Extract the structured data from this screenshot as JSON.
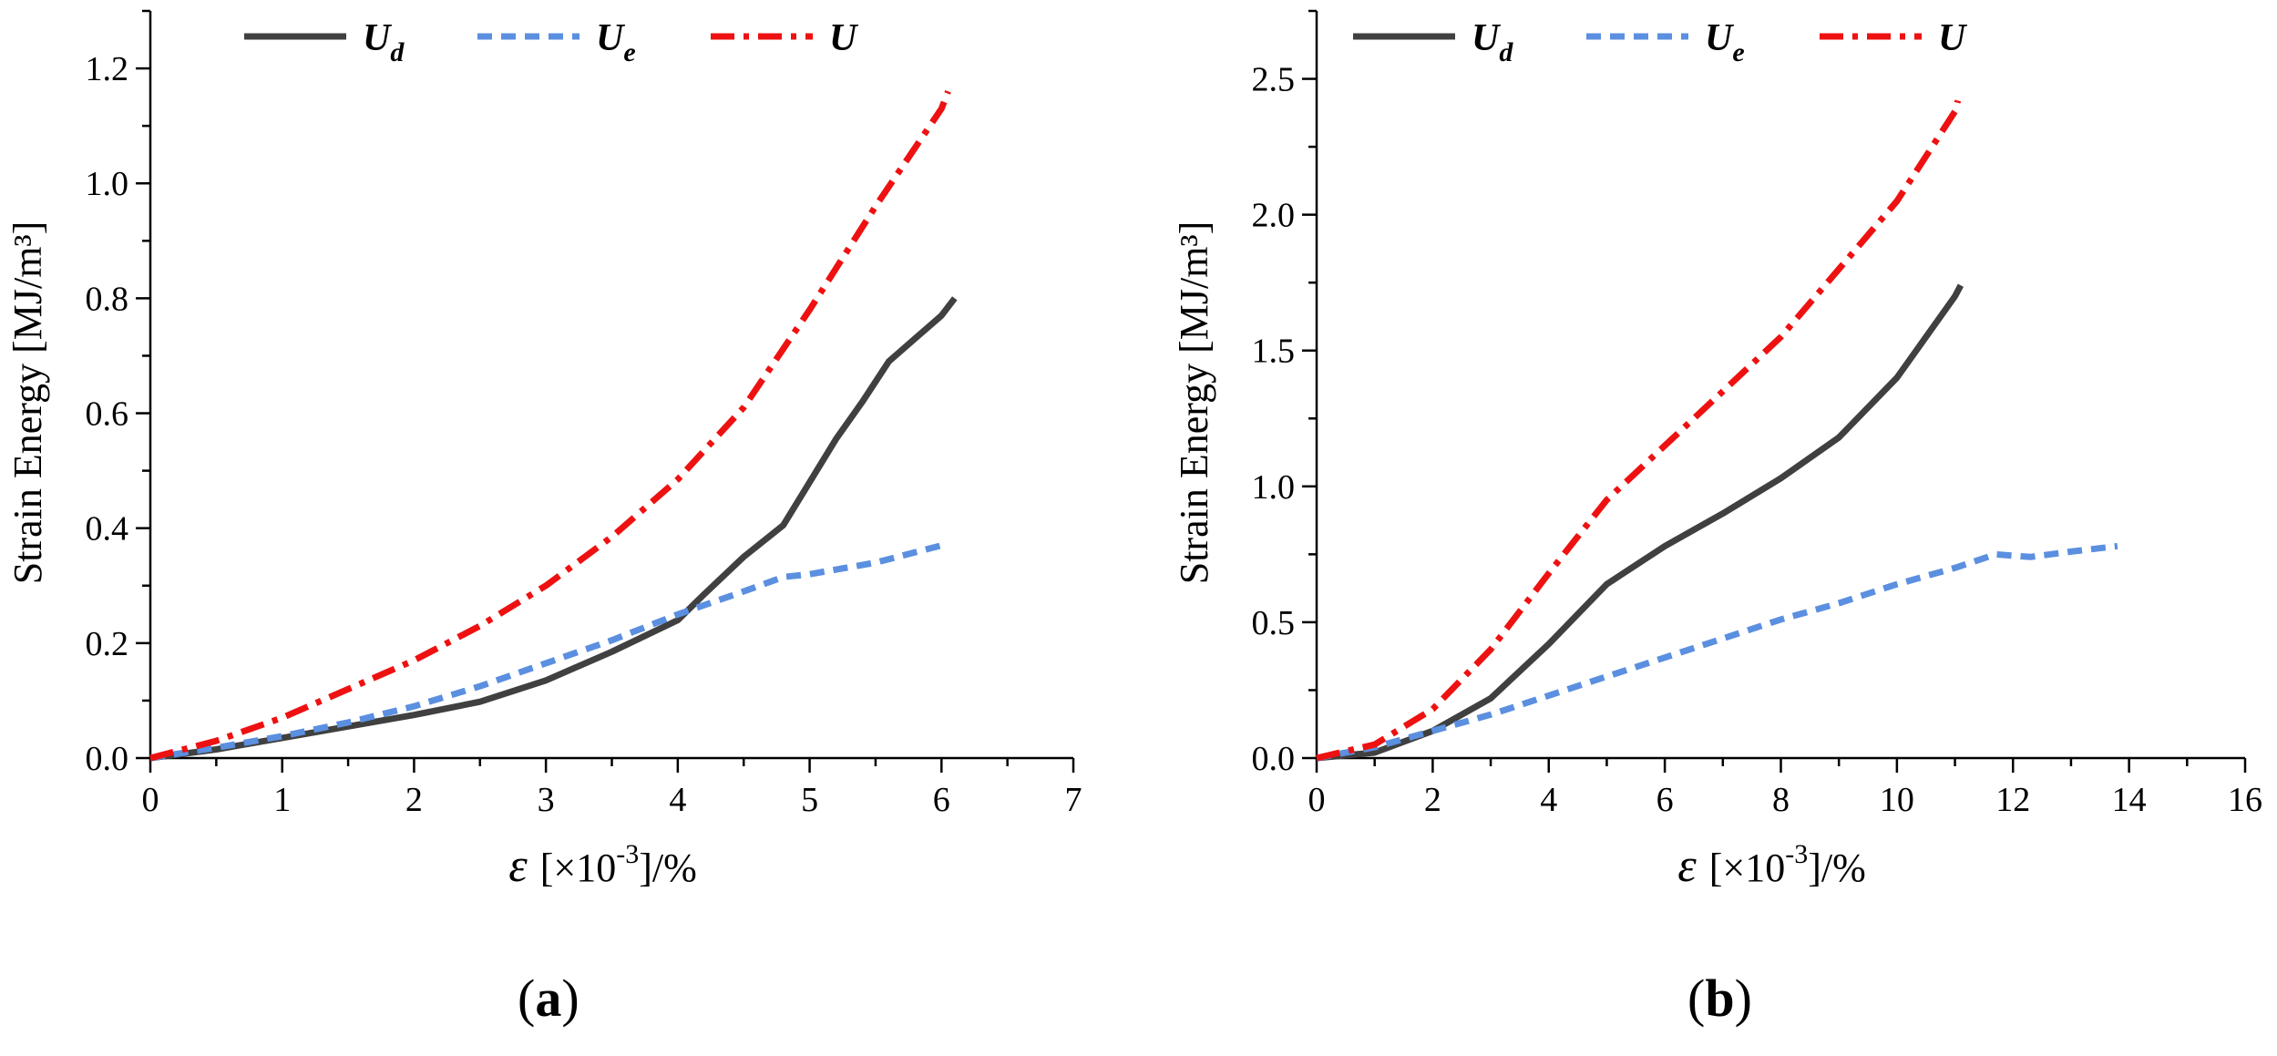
{
  "figure": {
    "panel_labels": [
      "a",
      "b"
    ]
  },
  "chart_data": [
    {
      "type": "line",
      "panel": "(a)",
      "title": "",
      "xlabel_symbol": "ε",
      "xlabel_unit": "[×10",
      "xlabel_exp": "-3",
      "xlabel_tail": "]/%",
      "ylabel": "Strain Energy [MJ/m³]",
      "xlim": [
        0,
        7
      ],
      "ylim": [
        0,
        1.3
      ],
      "xticks": [
        0,
        1,
        2,
        3,
        4,
        5,
        6,
        7
      ],
      "yticks": [
        0.0,
        0.2,
        0.4,
        0.6,
        0.8,
        1.0,
        1.2
      ],
      "ytick_labels": [
        "0.0",
        "0.2",
        "0.4",
        "0.6",
        "0.8",
        "1.0",
        "1.2"
      ],
      "legend_position": "top",
      "series": [
        {
          "name": "U_d",
          "label_main": "U",
          "label_sub": "d",
          "color": "#404040",
          "style": "solid",
          "x": [
            0,
            0.5,
            1,
            1.5,
            2,
            2.5,
            3,
            3.5,
            4,
            4.2,
            4.5,
            4.8,
            5,
            5.2,
            5.4,
            5.6,
            5.8,
            6,
            6.1
          ],
          "y": [
            0,
            0.015,
            0.035,
            0.055,
            0.075,
            0.098,
            0.135,
            0.185,
            0.24,
            0.285,
            0.35,
            0.405,
            0.48,
            0.555,
            0.62,
            0.69,
            0.73,
            0.77,
            0.8
          ]
        },
        {
          "name": "U_e",
          "label_main": "U",
          "label_sub": "e",
          "color": "#5b8fe0",
          "style": "dashed",
          "x": [
            0,
            0.5,
            1,
            1.5,
            2,
            2.5,
            3,
            3.5,
            4,
            4.5,
            4.8,
            5,
            5.5,
            6
          ],
          "y": [
            0,
            0.018,
            0.038,
            0.062,
            0.09,
            0.125,
            0.165,
            0.205,
            0.25,
            0.29,
            0.315,
            0.32,
            0.34,
            0.37
          ]
        },
        {
          "name": "U",
          "label_main": "U",
          "label_sub": "",
          "color": "#ee1111",
          "style": "dashdot",
          "x": [
            0,
            0.5,
            1,
            1.5,
            2,
            2.5,
            3,
            3.5,
            4,
            4.5,
            5,
            5.5,
            6,
            6.05
          ],
          "y": [
            0,
            0.03,
            0.07,
            0.12,
            0.17,
            0.23,
            0.3,
            0.385,
            0.485,
            0.61,
            0.78,
            0.96,
            1.13,
            1.16
          ]
        }
      ]
    },
    {
      "type": "line",
      "panel": "(b)",
      "title": "",
      "xlabel_symbol": "ε",
      "xlabel_unit": "[×10",
      "xlabel_exp": "-3",
      "xlabel_tail": "]/%",
      "ylabel": "Strain Energy [MJ/m³]",
      "xlim": [
        0,
        16
      ],
      "ylim": [
        0,
        2.75
      ],
      "xticks": [
        0,
        2,
        4,
        6,
        8,
        10,
        12,
        14,
        16
      ],
      "yticks": [
        0.0,
        0.5,
        1.0,
        1.5,
        2.0,
        2.5
      ],
      "ytick_labels": [
        "0.0",
        "0.5",
        "1.0",
        "1.5",
        "2.0",
        "2.5"
      ],
      "legend_position": "top",
      "series": [
        {
          "name": "U_d",
          "label_main": "U",
          "label_sub": "d",
          "color": "#404040",
          "style": "solid",
          "x": [
            0,
            1,
            2,
            3,
            4,
            5,
            6,
            7,
            8,
            9,
            10,
            11,
            11.1
          ],
          "y": [
            0,
            0.02,
            0.1,
            0.22,
            0.42,
            0.64,
            0.78,
            0.9,
            1.03,
            1.18,
            1.4,
            1.7,
            1.74
          ]
        },
        {
          "name": "U_e",
          "label_main": "U",
          "label_sub": "e",
          "color": "#5b8fe0",
          "style": "dashed",
          "x": [
            0,
            1,
            2,
            3,
            4,
            5,
            6,
            7,
            8,
            9,
            10,
            11,
            11.7,
            12.3,
            13,
            13.8
          ],
          "y": [
            0,
            0.04,
            0.1,
            0.16,
            0.23,
            0.3,
            0.37,
            0.44,
            0.51,
            0.57,
            0.64,
            0.7,
            0.75,
            0.74,
            0.76,
            0.78
          ]
        },
        {
          "name": "U",
          "label_main": "U",
          "label_sub": "",
          "color": "#ee1111",
          "style": "dashdot",
          "x": [
            0,
            1,
            2,
            3,
            4,
            5,
            6,
            7,
            8,
            9,
            10,
            11,
            11.05
          ],
          "y": [
            0,
            0.05,
            0.18,
            0.4,
            0.68,
            0.95,
            1.15,
            1.35,
            1.55,
            1.8,
            2.05,
            2.38,
            2.42
          ]
        }
      ]
    }
  ]
}
